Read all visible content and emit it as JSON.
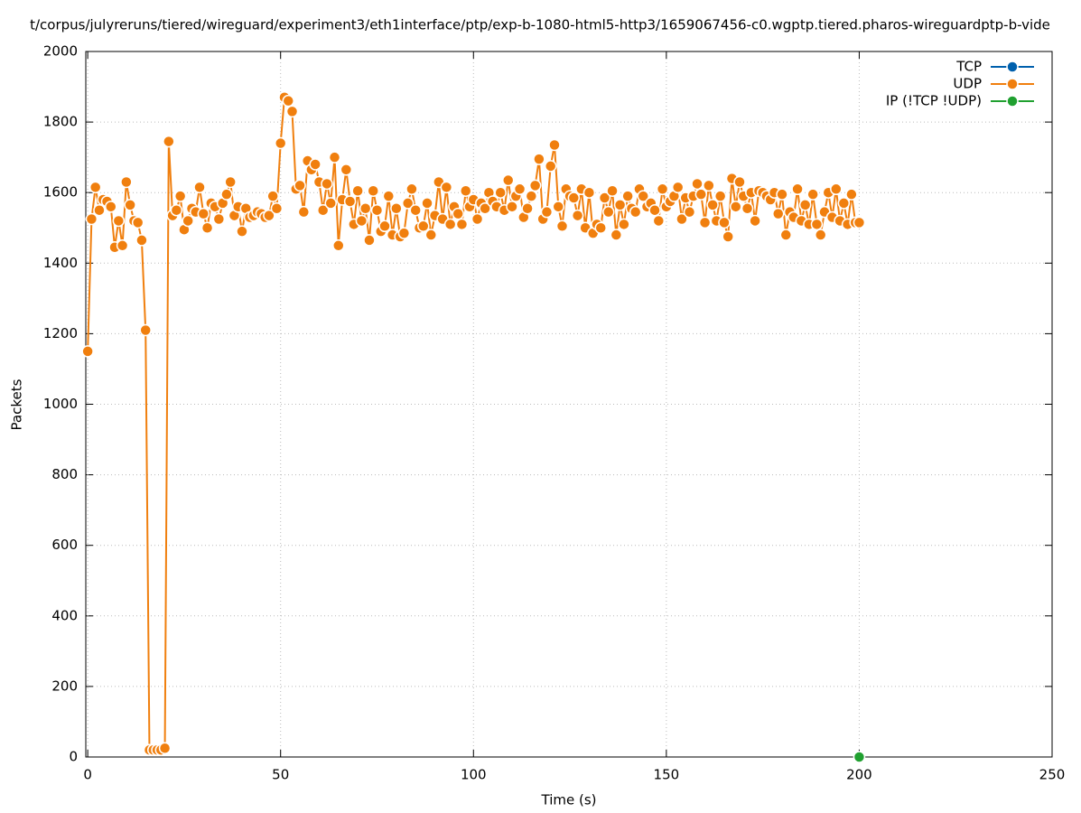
{
  "chart_data": {
    "type": "line",
    "title": "t/corpus/julyreruns/tiered/wireguard/experiment3/eth1interface/ptp/exp-b-1080-html5-http3/1659067456-c0.wgptp.tiered.pharos-wireguardptp-b-vide",
    "xlabel": "Time (s)",
    "ylabel": "Packets",
    "xlim": [
      -0.5,
      250
    ],
    "xticks": [
      0,
      50,
      100,
      150,
      200,
      250
    ],
    "ylim": [
      0,
      2000
    ],
    "yticks": [
      0,
      200,
      400,
      600,
      800,
      1000,
      1200,
      1400,
      1600,
      1800,
      2000
    ],
    "grid": true,
    "legend": "top-right",
    "series": [
      {
        "name": "TCP",
        "color": "#0060ad",
        "x": [],
        "values": []
      },
      {
        "name": "UDP",
        "color": "#f07f0e",
        "x": [
          0,
          1,
          2,
          3,
          4,
          5,
          6,
          7,
          8,
          9,
          10,
          11,
          12,
          13,
          14,
          15,
          16,
          17,
          18,
          19,
          20,
          21,
          22,
          23,
          24,
          25,
          26,
          27,
          28,
          29,
          30,
          31,
          32,
          33,
          34,
          35,
          36,
          37,
          38,
          39,
          40,
          41,
          42,
          43,
          44,
          45,
          46,
          47,
          48,
          49,
          50,
          51,
          52,
          53,
          54,
          55,
          56,
          57,
          58,
          59,
          60,
          61,
          62,
          63,
          64,
          65,
          66,
          67,
          68,
          69,
          70,
          71,
          72,
          73,
          74,
          75,
          76,
          77,
          78,
          79,
          80,
          81,
          82,
          83,
          84,
          85,
          86,
          87,
          88,
          89,
          90,
          91,
          92,
          93,
          94,
          95,
          96,
          97,
          98,
          99,
          100,
          101,
          102,
          103,
          104,
          105,
          106,
          107,
          108,
          109,
          110,
          111,
          112,
          113,
          114,
          115,
          116,
          117,
          118,
          119,
          120,
          121,
          122,
          123,
          124,
          125,
          126,
          127,
          128,
          129,
          130,
          131,
          132,
          133,
          134,
          135,
          136,
          137,
          138,
          139,
          140,
          141,
          142,
          143,
          144,
          145,
          146,
          147,
          148,
          149,
          150,
          151,
          152,
          153,
          154,
          155,
          156,
          157,
          158,
          159,
          160,
          161,
          162,
          163,
          164,
          165,
          166,
          167,
          168,
          169,
          170,
          171,
          172,
          173,
          174,
          175,
          176,
          177,
          178,
          179,
          180,
          181,
          182,
          183,
          184,
          185,
          186,
          187,
          188,
          189,
          190,
          191,
          192,
          193,
          194,
          195,
          196,
          197,
          198,
          199,
          200
        ],
        "values": [
          1150,
          1525,
          1615,
          1550,
          1580,
          1575,
          1560,
          1445,
          1520,
          1450,
          1630,
          1565,
          1520,
          1515,
          1465,
          1210,
          20,
          20,
          20,
          20,
          25,
          1745,
          1535,
          1550,
          1590,
          1495,
          1520,
          1555,
          1545,
          1615,
          1540,
          1500,
          1570,
          1560,
          1525,
          1570,
          1595,
          1630,
          1535,
          1560,
          1490,
          1555,
          1530,
          1535,
          1545,
          1540,
          1530,
          1535,
          1590,
          1555,
          1740,
          1870,
          1860,
          1830,
          1610,
          1620,
          1545,
          1690,
          1665,
          1680,
          1630,
          1550,
          1625,
          1570,
          1700,
          1450,
          1580,
          1665,
          1575,
          1510,
          1605,
          1520,
          1555,
          1465,
          1605,
          1550,
          1490,
          1505,
          1590,
          1480,
          1555,
          1475,
          1485,
          1570,
          1610,
          1550,
          1500,
          1505,
          1570,
          1480,
          1535,
          1630,
          1525,
          1615,
          1510,
          1560,
          1540,
          1510,
          1605,
          1560,
          1580,
          1525,
          1570,
          1555,
          1600,
          1575,
          1560,
          1600,
          1550,
          1635,
          1560,
          1590,
          1610,
          1530,
          1555,
          1590,
          1620,
          1695,
          1525,
          1545,
          1675,
          1735,
          1560,
          1505,
          1610,
          1590,
          1585,
          1535,
          1610,
          1500,
          1600,
          1485,
          1510,
          1500,
          1585,
          1545,
          1605,
          1480,
          1565,
          1510,
          1590,
          1555,
          1545,
          1610,
          1590,
          1560,
          1570,
          1550,
          1520,
          1610,
          1560,
          1575,
          1590,
          1615,
          1525,
          1585,
          1545,
          1590,
          1625,
          1595,
          1515,
          1620,
          1565,
          1520,
          1590,
          1515,
          1475,
          1640,
          1560,
          1630,
          1590,
          1555,
          1600,
          1520,
          1605,
          1600,
          1590,
          1580,
          1600,
          1540,
          1595,
          1480,
          1545,
          1530,
          1610,
          1520,
          1565,
          1510,
          1595,
          1510,
          1480,
          1545,
          1600,
          1530,
          1610,
          1520,
          1570,
          1510,
          1595,
          1515,
          1515
        ]
      },
      {
        "name": "IP (!TCP  !UDP)",
        "color": "#20a030",
        "x": [
          200
        ],
        "values": [
          0
        ]
      }
    ]
  }
}
